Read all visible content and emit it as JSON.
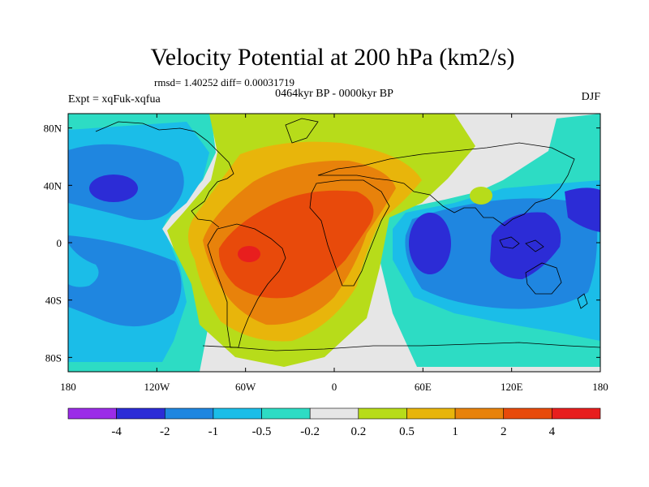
{
  "title": "Velocity Potential at 200 hPa (km2/s)",
  "stats": "rmsd= 1.40252 diff= 0.00031719",
  "experiment": "Expt = xqFuk-xqfua",
  "period": "0464kyr BP - 0000kyr BP",
  "season": "DJF",
  "chart_data": {
    "type": "heatmap",
    "title": "Velocity Potential at 200 hPa (km2/s)",
    "xlabel": "",
    "ylabel": "",
    "x_ticks": [
      "180",
      "120W",
      "60W",
      "0",
      "60E",
      "120E",
      "180"
    ],
    "y_ticks": [
      "80N",
      "40N",
      "0",
      "40S",
      "80S"
    ],
    "xlim": [
      -180,
      180
    ],
    "ylim": [
      -90,
      90
    ],
    "colorbar": {
      "labels": [
        "-4",
        "-2",
        "-1",
        "-0.5",
        "-0.2",
        "0.2",
        "0.5",
        "1",
        "2",
        "4"
      ],
      "colors": [
        "#9b2ce8",
        "#2c2cd6",
        "#1f86e0",
        "#1bbde8",
        "#2ddcc4",
        "#e6e6e6",
        "#b7dc1a",
        "#e8b50b",
        "#e8820b",
        "#e84a0b",
        "#e81e1e"
      ]
    },
    "features": [
      {
        "name": "positive-max",
        "value": 4,
        "lon": -55,
        "lat": -8
      },
      {
        "name": "negative-min-west-pacific",
        "value": -4,
        "lon": 125,
        "lat": 0
      },
      {
        "name": "negative-min-indian-ocean",
        "value": -4,
        "lon": 70,
        "lat": 0
      },
      {
        "name": "negative-min-north-pacific",
        "value": -4,
        "lon": -150,
        "lat": 30
      }
    ]
  }
}
